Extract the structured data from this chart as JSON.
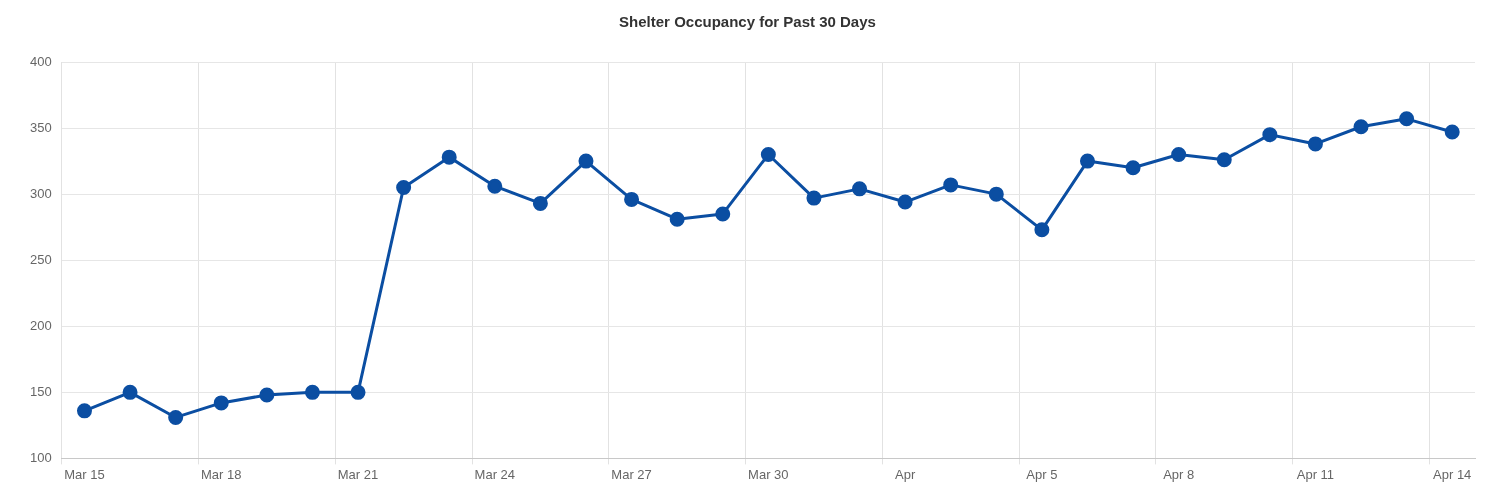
{
  "chart_data": {
    "type": "line",
    "title": "Shelter Occupancy for Past 30 Days",
    "categories": [
      "Mar 15",
      null,
      null,
      "Mar 18",
      null,
      null,
      "Mar 21",
      null,
      null,
      "Mar 24",
      null,
      null,
      "Mar 27",
      null,
      null,
      "Mar 30",
      null,
      null,
      "Apr",
      null,
      null,
      "Apr 5",
      null,
      null,
      "Apr 8",
      null,
      null,
      "Apr 11",
      null,
      null,
      "Apr 14"
    ],
    "series": [
      {
        "color": "#0b4ea2",
        "values": [
          136,
          150,
          131,
          142,
          148,
          150,
          150,
          305,
          328,
          306,
          293,
          325,
          296,
          281,
          285,
          330,
          297,
          304,
          294,
          307,
          300,
          273,
          325,
          320,
          330,
          326,
          345,
          338,
          351,
          357,
          347
        ]
      }
    ],
    "ylim": [
      100,
      400
    ],
    "yticks": [
      100,
      150,
      200,
      250,
      300,
      350,
      400
    ],
    "grid": true,
    "legend": false,
    "marker": "circle",
    "line_style": "solid"
  }
}
